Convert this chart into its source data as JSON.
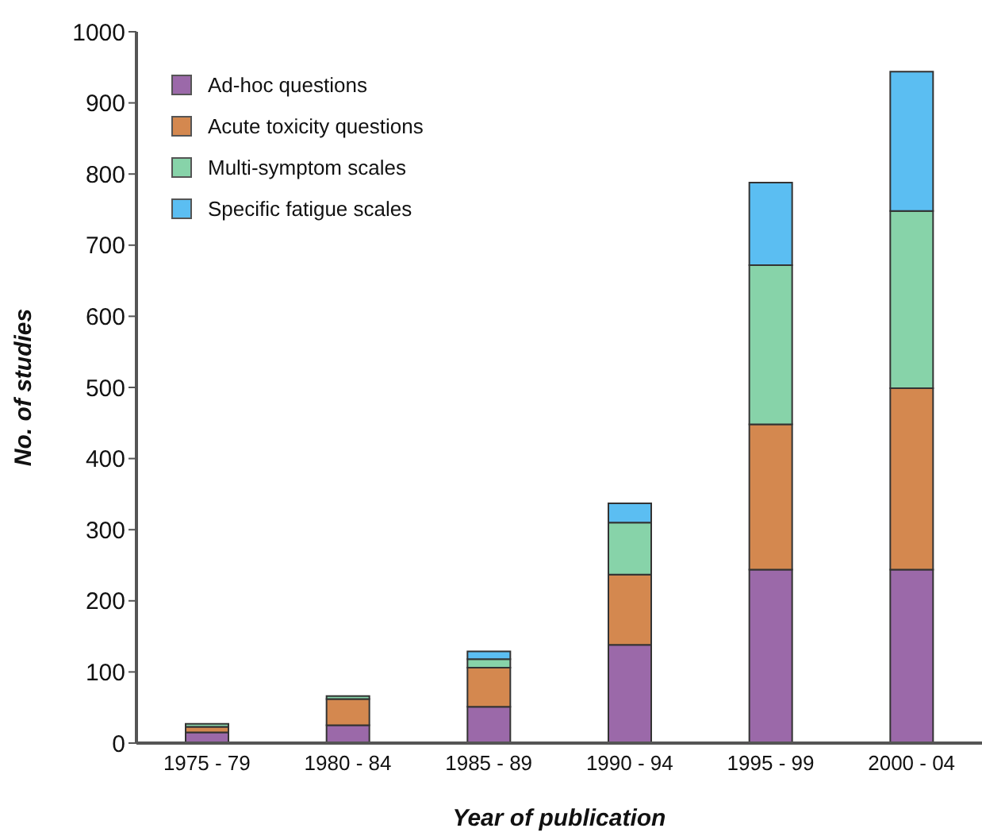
{
  "chart_data": {
    "type": "bar",
    "stacked": true,
    "xlabel": "Year of publication",
    "ylabel": "No. of studies",
    "categories": [
      "1975 - 79",
      "1980 - 84",
      "1985 - 89",
      "1990 - 94",
      "1995 - 99",
      "2000 - 04"
    ],
    "series": [
      {
        "name": "Ad-hoc questions",
        "color": "#9b69a9",
        "values": [
          15,
          25,
          51,
          138,
          244,
          244
        ]
      },
      {
        "name": "Acute toxicity questions",
        "color": "#d4884f",
        "values": [
          8,
          37,
          55,
          99,
          204,
          255
        ]
      },
      {
        "name": "Multi-symptom scales",
        "color": "#87d3a9",
        "values": [
          4,
          4,
          12,
          73,
          224,
          249
        ]
      },
      {
        "name": "Specific fatigue scales",
        "color": "#5bbef2",
        "values": [
          0,
          0,
          11,
          27,
          116,
          196
        ]
      }
    ],
    "ylim": [
      0,
      1000
    ],
    "yticks": [
      0,
      100,
      200,
      300,
      400,
      500,
      600,
      700,
      800,
      900,
      1000
    ],
    "grid": false,
    "legend": "top left"
  }
}
